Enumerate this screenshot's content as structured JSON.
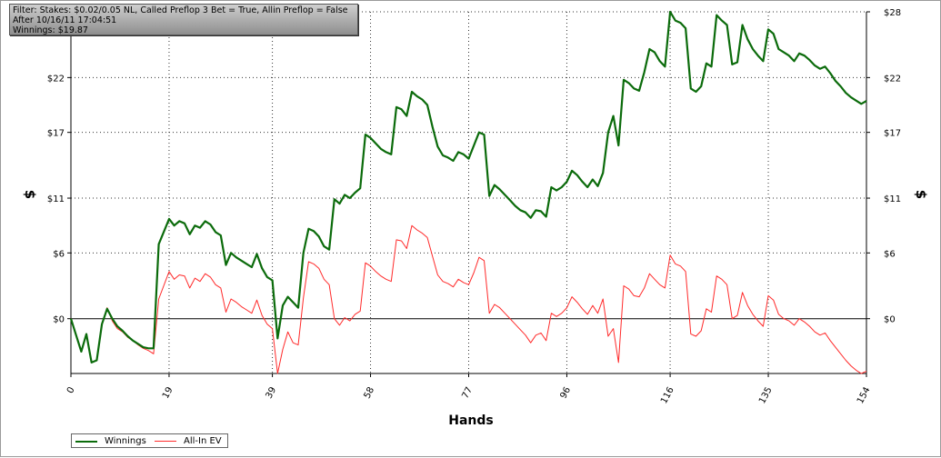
{
  "info": {
    "line1": "Filter: Stakes: $0.02/0.05 NL, Called Preflop 3 Bet = True, Allin Preflop = False",
    "line2": "After 10/16/11 17:04:51",
    "line3": "Winnings: $19.87"
  },
  "chart_data": {
    "type": "line",
    "xlabel": "Hands",
    "ylabel": "$",
    "xlim": [
      0,
      154
    ],
    "ylim": [
      -5,
      28
    ],
    "x_ticks": [
      0,
      19,
      39,
      58,
      77,
      96,
      116,
      135,
      154
    ],
    "y_ticks": [
      0,
      6,
      11,
      17,
      22,
      28
    ],
    "y_tick_labels_left": [
      "$0",
      "$6",
      "$11",
      "$17",
      "$22",
      ""
    ],
    "y_tick_labels_right": [
      "$0",
      "$6",
      "$11",
      "$17",
      "$22",
      "$28"
    ],
    "grid": true,
    "legend_position": "bottom-left",
    "series": [
      {
        "name": "Winnings",
        "color": "#0b6b0b",
        "points": [
          [
            0,
            0
          ],
          [
            1,
            -1.5
          ],
          [
            2,
            -3
          ],
          [
            3,
            -1.4
          ],
          [
            4,
            -4
          ],
          [
            5,
            -3.8
          ],
          [
            6,
            -0.5
          ],
          [
            7,
            0.9
          ],
          [
            8,
            0
          ],
          [
            9,
            -0.7
          ],
          [
            10,
            -1.1
          ],
          [
            11,
            -1.6
          ],
          [
            12,
            -2
          ],
          [
            13,
            -2.3
          ],
          [
            14,
            -2.6
          ],
          [
            15,
            -2.7
          ],
          [
            16,
            -2.7
          ],
          [
            17,
            6.8
          ],
          [
            19,
            9.1
          ],
          [
            20,
            8.5
          ],
          [
            21,
            8.9
          ],
          [
            22,
            8.7
          ],
          [
            23,
            7.7
          ],
          [
            24,
            8.5
          ],
          [
            25,
            8.3
          ],
          [
            26,
            8.9
          ],
          [
            27,
            8.6
          ],
          [
            28,
            7.9
          ],
          [
            29,
            7.6
          ],
          [
            30,
            4.9
          ],
          [
            31,
            6
          ],
          [
            32,
            5.6
          ],
          [
            33,
            5.3
          ],
          [
            34,
            5
          ],
          [
            35,
            4.7
          ],
          [
            36,
            5.9
          ],
          [
            37,
            4.6
          ],
          [
            38,
            3.8
          ],
          [
            39,
            3.5
          ],
          [
            40,
            -1.8
          ],
          [
            41,
            1.2
          ],
          [
            42,
            2
          ],
          [
            43,
            1.5
          ],
          [
            44,
            1
          ],
          [
            45,
            6
          ],
          [
            46,
            8.2
          ],
          [
            47,
            8
          ],
          [
            48,
            7.5
          ],
          [
            49,
            6.6
          ],
          [
            50,
            6.3
          ],
          [
            51,
            10.9
          ],
          [
            52,
            10.5
          ],
          [
            53,
            11.3
          ],
          [
            54,
            11
          ],
          [
            55,
            11.5
          ],
          [
            56,
            11.9
          ],
          [
            57,
            16.8
          ],
          [
            58,
            16.5
          ],
          [
            59,
            16
          ],
          [
            60,
            15.5
          ],
          [
            61,
            15.2
          ],
          [
            62,
            15
          ],
          [
            63,
            19.3
          ],
          [
            64,
            19.1
          ],
          [
            65,
            18.5
          ],
          [
            66,
            20.7
          ],
          [
            67,
            20.3
          ],
          [
            68,
            20
          ],
          [
            69,
            19.5
          ],
          [
            70,
            17.5
          ],
          [
            71,
            15.7
          ],
          [
            72,
            14.9
          ],
          [
            73,
            14.7
          ],
          [
            74,
            14.4
          ],
          [
            75,
            15.2
          ],
          [
            76,
            15
          ],
          [
            77,
            14.6
          ],
          [
            78,
            15.8
          ],
          [
            79,
            17
          ],
          [
            80,
            16.8
          ],
          [
            81,
            11.2
          ],
          [
            82,
            12.2
          ],
          [
            83,
            11.8
          ],
          [
            84,
            11.3
          ],
          [
            85,
            10.8
          ],
          [
            86,
            10.3
          ],
          [
            87,
            9.9
          ],
          [
            88,
            9.7
          ],
          [
            89,
            9.2
          ],
          [
            90,
            9.9
          ],
          [
            91,
            9.8
          ],
          [
            92,
            9.3
          ],
          [
            93,
            12
          ],
          [
            94,
            11.7
          ],
          [
            95,
            12
          ],
          [
            96,
            12.5
          ],
          [
            97,
            13.5
          ],
          [
            98,
            13.1
          ],
          [
            99,
            12.5
          ],
          [
            100,
            12
          ],
          [
            101,
            12.7
          ],
          [
            102,
            12.1
          ],
          [
            103,
            13.3
          ],
          [
            104,
            17
          ],
          [
            105,
            18.5
          ],
          [
            106,
            15.8
          ],
          [
            107,
            21.8
          ],
          [
            108,
            21.5
          ],
          [
            109,
            21
          ],
          [
            110,
            20.8
          ],
          [
            111,
            22.5
          ],
          [
            112,
            24.6
          ],
          [
            113,
            24.3
          ],
          [
            114,
            23.5
          ],
          [
            115,
            23
          ],
          [
            116,
            28
          ],
          [
            117,
            27.2
          ],
          [
            118,
            27
          ],
          [
            119,
            26.5
          ],
          [
            120,
            21
          ],
          [
            121,
            20.7
          ],
          [
            122,
            21.2
          ],
          [
            123,
            23.3
          ],
          [
            124,
            23
          ],
          [
            125,
            27.7
          ],
          [
            126,
            27.2
          ],
          [
            127,
            26.8
          ],
          [
            128,
            23.2
          ],
          [
            129,
            23.4
          ],
          [
            130,
            26.8
          ],
          [
            131,
            25.5
          ],
          [
            132,
            24.6
          ],
          [
            133,
            24
          ],
          [
            134,
            23.5
          ],
          [
            135,
            26.4
          ],
          [
            136,
            26
          ],
          [
            137,
            24.6
          ],
          [
            138,
            24.3
          ],
          [
            139,
            24
          ],
          [
            140,
            23.5
          ],
          [
            141,
            24.2
          ],
          [
            142,
            24
          ],
          [
            143,
            23.6
          ],
          [
            144,
            23.1
          ],
          [
            145,
            22.8
          ],
          [
            146,
            23
          ],
          [
            147,
            22.4
          ],
          [
            148,
            21.7
          ],
          [
            149,
            21.2
          ],
          [
            150,
            20.6
          ],
          [
            151,
            20.2
          ],
          [
            152,
            19.9
          ],
          [
            153,
            19.6
          ],
          [
            154,
            19.87
          ]
        ]
      },
      {
        "name": "All-In EV",
        "color": "#ff2a2a",
        "points": [
          [
            0,
            0
          ],
          [
            1,
            -1.5
          ],
          [
            2,
            -3
          ],
          [
            3,
            -1.4
          ],
          [
            4,
            -4
          ],
          [
            5,
            -3.8
          ],
          [
            6,
            -0.5
          ],
          [
            7,
            1
          ],
          [
            8,
            -0.2
          ],
          [
            9,
            -0.9
          ],
          [
            10,
            -1.2
          ],
          [
            11,
            -1.7
          ],
          [
            12,
            -2
          ],
          [
            13,
            -2.4
          ],
          [
            14,
            -2.7
          ],
          [
            15,
            -2.9
          ],
          [
            16,
            -3.2
          ],
          [
            17,
            1.8
          ],
          [
            19,
            4.3
          ],
          [
            20,
            3.6
          ],
          [
            21,
            4
          ],
          [
            22,
            3.9
          ],
          [
            23,
            2.8
          ],
          [
            24,
            3.7
          ],
          [
            25,
            3.4
          ],
          [
            26,
            4.1
          ],
          [
            27,
            3.8
          ],
          [
            28,
            3.1
          ],
          [
            29,
            2.8
          ],
          [
            30,
            0.6
          ],
          [
            31,
            1.8
          ],
          [
            32,
            1.5
          ],
          [
            33,
            1.1
          ],
          [
            34,
            0.8
          ],
          [
            35,
            0.5
          ],
          [
            36,
            1.7
          ],
          [
            37,
            0.3
          ],
          [
            38,
            -0.5
          ],
          [
            39,
            -0.9
          ],
          [
            40,
            -5
          ],
          [
            41,
            -2.8
          ],
          [
            42,
            -1.2
          ],
          [
            43,
            -2.2
          ],
          [
            44,
            -2.4
          ],
          [
            45,
            1.9
          ],
          [
            46,
            5.2
          ],
          [
            47,
            5
          ],
          [
            48,
            4.6
          ],
          [
            49,
            3.6
          ],
          [
            50,
            3.1
          ],
          [
            51,
            0
          ],
          [
            52,
            -0.6
          ],
          [
            53,
            0.1
          ],
          [
            54,
            -0.2
          ],
          [
            55,
            0.4
          ],
          [
            56,
            0.7
          ],
          [
            57,
            5.1
          ],
          [
            58,
            4.8
          ],
          [
            59,
            4.3
          ],
          [
            60,
            3.9
          ],
          [
            61,
            3.6
          ],
          [
            62,
            3.4
          ],
          [
            63,
            7.2
          ],
          [
            64,
            7.1
          ],
          [
            65,
            6.4
          ],
          [
            66,
            8.5
          ],
          [
            67,
            8.1
          ],
          [
            68,
            7.8
          ],
          [
            69,
            7.4
          ],
          [
            70,
            5.7
          ],
          [
            71,
            4
          ],
          [
            72,
            3.4
          ],
          [
            73,
            3.2
          ],
          [
            74,
            2.9
          ],
          [
            75,
            3.6
          ],
          [
            76,
            3.3
          ],
          [
            77,
            3.1
          ],
          [
            78,
            4.2
          ],
          [
            79,
            5.6
          ],
          [
            80,
            5.3
          ],
          [
            81,
            0.5
          ],
          [
            82,
            1.3
          ],
          [
            83,
            1
          ],
          [
            84,
            0.5
          ],
          [
            85,
            0
          ],
          [
            86,
            -0.5
          ],
          [
            87,
            -1
          ],
          [
            88,
            -1.5
          ],
          [
            89,
            -2.2
          ],
          [
            90,
            -1.5
          ],
          [
            91,
            -1.3
          ],
          [
            92,
            -2
          ],
          [
            93,
            0.5
          ],
          [
            94,
            0.2
          ],
          [
            95,
            0.5
          ],
          [
            96,
            1
          ],
          [
            97,
            2
          ],
          [
            98,
            1.5
          ],
          [
            99,
            0.9
          ],
          [
            100,
            0.4
          ],
          [
            101,
            1.2
          ],
          [
            102,
            0.5
          ],
          [
            103,
            1.8
          ],
          [
            104,
            -1.6
          ],
          [
            105,
            -0.9
          ],
          [
            106,
            -4
          ],
          [
            107,
            3
          ],
          [
            108,
            2.7
          ],
          [
            109,
            2.1
          ],
          [
            110,
            2
          ],
          [
            111,
            2.8
          ],
          [
            112,
            4.1
          ],
          [
            113,
            3.6
          ],
          [
            114,
            3.1
          ],
          [
            115,
            2.8
          ],
          [
            116,
            5.8
          ],
          [
            117,
            5
          ],
          [
            118,
            4.8
          ],
          [
            119,
            4.3
          ],
          [
            120,
            -1.4
          ],
          [
            121,
            -1.6
          ],
          [
            122,
            -1.1
          ],
          [
            123,
            0.9
          ],
          [
            124,
            0.6
          ],
          [
            125,
            3.9
          ],
          [
            126,
            3.6
          ],
          [
            127,
            3.1
          ],
          [
            128,
            0
          ],
          [
            129,
            0.3
          ],
          [
            130,
            2.4
          ],
          [
            131,
            1.2
          ],
          [
            132,
            0.4
          ],
          [
            133,
            -0.2
          ],
          [
            134,
            -0.7
          ],
          [
            135,
            2.1
          ],
          [
            136,
            1.7
          ],
          [
            137,
            0.4
          ],
          [
            138,
            0
          ],
          [
            139,
            -0.2
          ],
          [
            140,
            -0.6
          ],
          [
            141,
            0
          ],
          [
            142,
            -0.3
          ],
          [
            143,
            -0.7
          ],
          [
            144,
            -1.2
          ],
          [
            145,
            -1.5
          ],
          [
            146,
            -1.3
          ],
          [
            147,
            -2
          ],
          [
            148,
            -2.6
          ],
          [
            149,
            -3.2
          ],
          [
            150,
            -3.8
          ],
          [
            151,
            -4.3
          ],
          [
            152,
            -4.7
          ],
          [
            153,
            -5
          ],
          [
            154,
            -4.8
          ]
        ]
      }
    ]
  }
}
